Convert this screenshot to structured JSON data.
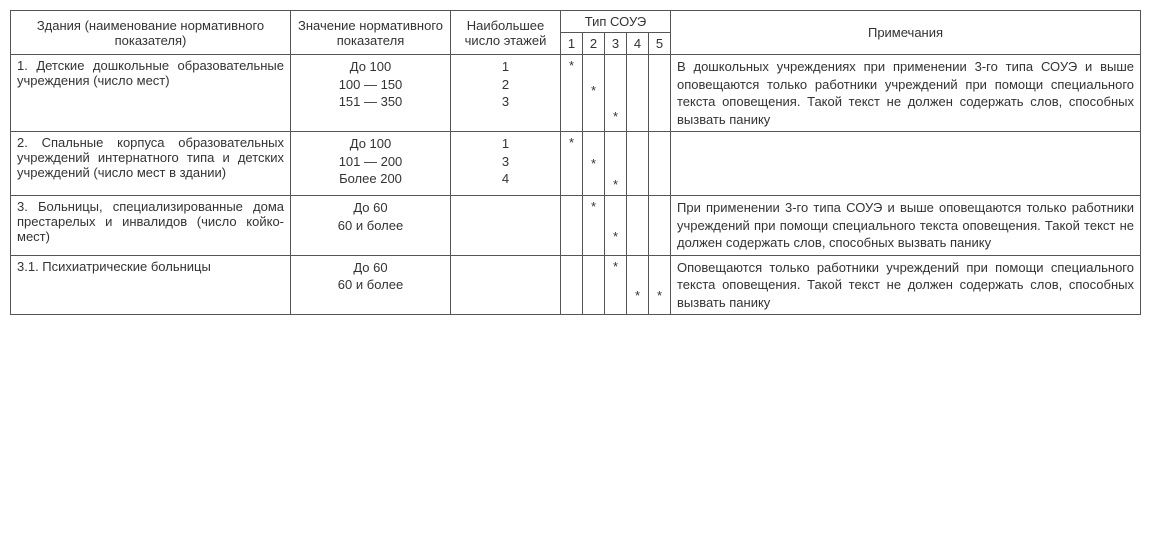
{
  "header": {
    "building": "Здания (наименование нормативного показателя)",
    "value": "Значение норма­тивного показателя",
    "floors": "Наибольшее число этажей",
    "soue": "Тип СОУЭ",
    "soue_cols": [
      "1",
      "2",
      "3",
      "4",
      "5"
    ],
    "notes": "Примечания"
  },
  "rows": [
    {
      "building": "1. Детские дошкольные образова­тельные учреждения (число мест)",
      "values": [
        "До 100",
        "100 — 150",
        "151 — 350"
      ],
      "floors": [
        "1",
        "2",
        "3"
      ],
      "marks": [
        [
          "*",
          "",
          "",
          "",
          ""
        ],
        [
          "",
          "*",
          "",
          "",
          ""
        ],
        [
          "",
          "",
          "*",
          "",
          ""
        ]
      ],
      "notes": "В дошкольных учреждениях при приме­нении 3-го типа СОУЭ и выше оповеща­ются только работники учреждений при помощи специального текста оповеще­ния. Такой текст не должен содержать слов, способных вызвать панику"
    },
    {
      "building": "2. Спальные корпуса образователь­ных учреждений интернатного типа и детских учреждений (число мест в здании)",
      "values": [
        "До 100",
        "101 — 200",
        "Более 200"
      ],
      "floors": [
        "1",
        "3",
        "4"
      ],
      "marks": [
        [
          "*",
          "",
          "",
          "",
          ""
        ],
        [
          "",
          "*",
          "",
          "",
          ""
        ],
        [
          "",
          "",
          "*",
          "",
          ""
        ]
      ],
      "notes": ""
    },
    {
      "building": "3. Больницы, специализированные дома престарелых и инвалидов (число койко-мест)",
      "values": [
        "До 60",
        "60 и более"
      ],
      "floors": [
        "",
        ""
      ],
      "marks": [
        [
          "",
          "*",
          "",
          "",
          ""
        ],
        [
          "",
          "",
          "*",
          "",
          ""
        ]
      ],
      "notes": "При применении 3-го типа СОУЭ и выше оповещаются только работники учреждений при помощи специально­го текста оповещения. Такой текст не должен содержать слов, способных вызвать панику"
    },
    {
      "building": "3.1. Психиатрические больницы",
      "values": [
        "До 60",
        "60 и более"
      ],
      "floors": [
        "",
        ""
      ],
      "marks": [
        [
          "",
          "",
          "*",
          "",
          ""
        ],
        [
          "",
          "",
          "",
          "*",
          "*"
        ]
      ],
      "notes": "Оповещаются только работники учреждений при помощи специально­го текста оповещения. Такой текст не должен содержать слов, способных вызвать панику"
    }
  ]
}
